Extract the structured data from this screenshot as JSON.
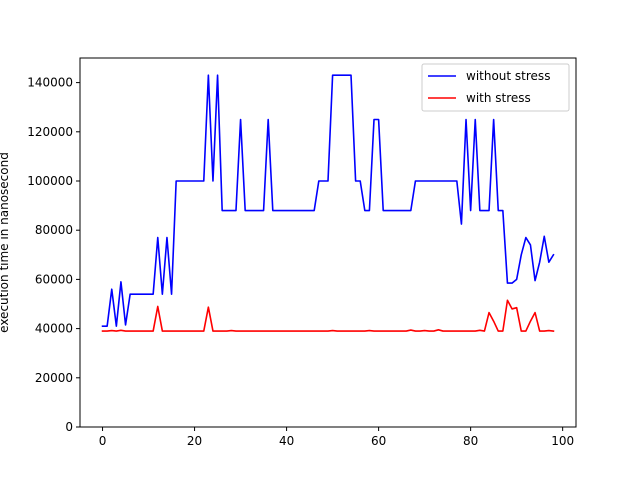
{
  "chart_data": {
    "type": "line",
    "title": "",
    "xlabel": "",
    "ylabel": "execution time in nanosecond",
    "xlim": [
      -4.9,
      102.9
    ],
    "ylim": [
      0,
      150000
    ],
    "xticks": [
      0,
      20,
      40,
      60,
      80,
      100
    ],
    "yticks": [
      0,
      20000,
      40000,
      60000,
      80000,
      100000,
      120000,
      140000
    ],
    "grid": false,
    "legend_position": "upper right",
    "series": [
      {
        "name": "without stress",
        "color": "#0000ff",
        "x": [
          0,
          1,
          2,
          3,
          4,
          5,
          6,
          7,
          8,
          9,
          10,
          11,
          12,
          13,
          14,
          15,
          16,
          17,
          18,
          19,
          20,
          21,
          22,
          23,
          24,
          25,
          26,
          27,
          28,
          29,
          30,
          31,
          32,
          33,
          34,
          35,
          36,
          37,
          38,
          39,
          40,
          41,
          42,
          43,
          44,
          45,
          46,
          47,
          48,
          49,
          50,
          51,
          52,
          53,
          54,
          55,
          56,
          57,
          58,
          59,
          60,
          61,
          62,
          63,
          64,
          65,
          66,
          67,
          68,
          69,
          70,
          71,
          72,
          73,
          74,
          75,
          76,
          77,
          78,
          79,
          80,
          81,
          82,
          83,
          84,
          85,
          86,
          87,
          88,
          89,
          90,
          91,
          92,
          93,
          94,
          95,
          96,
          97,
          98
        ],
        "y": [
          41000,
          41000,
          56000,
          41000,
          59000,
          41500,
          54000,
          54000,
          54000,
          54000,
          54000,
          54000,
          77000,
          54000,
          77000,
          54000,
          100000,
          100000,
          100000,
          100000,
          100000,
          100000,
          100000,
          143000,
          100000,
          143000,
          88000,
          88000,
          88000,
          88000,
          125000,
          88000,
          88000,
          88000,
          88000,
          88000,
          125000,
          88000,
          88000,
          88000,
          88000,
          88000,
          88000,
          88000,
          88000,
          88000,
          88000,
          100000,
          100000,
          100000,
          143000,
          143000,
          143000,
          143000,
          143000,
          100000,
          100000,
          88000,
          88000,
          125000,
          125000,
          88000,
          88000,
          88000,
          88000,
          88000,
          88000,
          88000,
          100000,
          100000,
          100000,
          100000,
          100000,
          100000,
          100000,
          100000,
          100000,
          100000,
          82500,
          125000,
          88000,
          125000,
          88000,
          88000,
          88000,
          125000,
          88000,
          88000,
          58500,
          58500,
          60000,
          70000,
          77000,
          74000,
          59500,
          67000,
          77500,
          67000,
          70000
        ]
      },
      {
        "name": "with stress",
        "color": "#ff0000",
        "x": [
          0,
          1,
          2,
          3,
          4,
          5,
          6,
          7,
          8,
          9,
          10,
          11,
          12,
          13,
          14,
          15,
          16,
          17,
          18,
          19,
          20,
          21,
          22,
          23,
          24,
          25,
          26,
          27,
          28,
          29,
          30,
          31,
          32,
          33,
          34,
          35,
          36,
          37,
          38,
          39,
          40,
          41,
          42,
          43,
          44,
          45,
          46,
          47,
          48,
          49,
          50,
          51,
          52,
          53,
          54,
          55,
          56,
          57,
          58,
          59,
          60,
          61,
          62,
          63,
          64,
          65,
          66,
          67,
          68,
          69,
          70,
          71,
          72,
          73,
          74,
          75,
          76,
          77,
          78,
          79,
          80,
          81,
          82,
          83,
          84,
          85,
          86,
          87,
          88,
          89,
          90,
          91,
          92,
          93,
          94,
          95,
          96,
          97,
          98
        ],
        "y": [
          39000,
          39000,
          39200,
          39000,
          39300,
          39000,
          39000,
          39000,
          39000,
          39000,
          39000,
          39000,
          49000,
          39000,
          39000,
          39000,
          39000,
          39000,
          39000,
          39000,
          39000,
          39000,
          39000,
          48700,
          39000,
          39000,
          39000,
          39000,
          39200,
          39000,
          39000,
          39000,
          39000,
          39000,
          39000,
          39000,
          39000,
          39000,
          39000,
          39000,
          39000,
          39000,
          39000,
          39000,
          39000,
          39000,
          39000,
          39000,
          39000,
          39000,
          39200,
          39000,
          39000,
          39000,
          39000,
          39000,
          39000,
          39000,
          39200,
          39000,
          39000,
          39000,
          39000,
          39000,
          39000,
          39000,
          39000,
          39400,
          39000,
          39000,
          39200,
          39000,
          39000,
          39500,
          39000,
          39000,
          39000,
          39000,
          39000,
          39000,
          39000,
          39000,
          39300,
          39000,
          46500,
          43000,
          39000,
          39000,
          51500,
          48000,
          48500,
          39000,
          39000,
          43000,
          46500,
          39000,
          39000,
          39200,
          39000
        ]
      }
    ]
  }
}
